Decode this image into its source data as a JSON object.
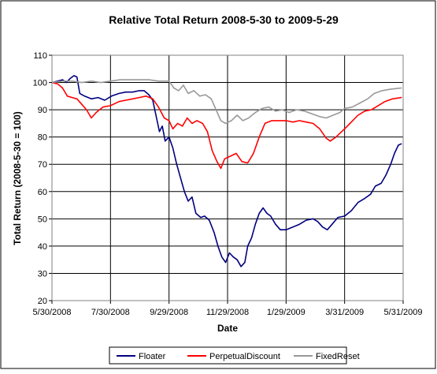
{
  "chart_data": {
    "type": "line",
    "title": "Relative Total Return 2008-5-30 to 2009-5-29",
    "xlabel": "Date",
    "ylabel": "Total Return (2008-5-30 = 100)",
    "ylim": [
      20,
      110
    ],
    "yticks": [
      20,
      30,
      40,
      50,
      60,
      70,
      80,
      90,
      100,
      110
    ],
    "xlim": [
      "2008-05-30",
      "2009-05-31"
    ],
    "xtick_labels": [
      "5/30/2008",
      "7/30/2008",
      "9/29/2008",
      "11/29/2008",
      "1/29/2009",
      "3/31/2009",
      "5/31/2009"
    ],
    "xtick_dates": [
      "2008-05-30",
      "2008-07-30",
      "2008-09-29",
      "2008-11-29",
      "2009-01-29",
      "2009-03-31",
      "2009-05-31"
    ],
    "grid": "horizontal and vertical at ticks",
    "legend_position": "bottom",
    "series": [
      {
        "name": "Floater",
        "color": "#000080",
        "points": [
          [
            "2008-05-30",
            100.0
          ],
          [
            "2008-06-05",
            100.5
          ],
          [
            "2008-06-10",
            101.0
          ],
          [
            "2008-06-14",
            100.0
          ],
          [
            "2008-06-18",
            101.5
          ],
          [
            "2008-06-22",
            102.5
          ],
          [
            "2008-06-25",
            102.0
          ],
          [
            "2008-06-28",
            96.0
          ],
          [
            "2008-07-03",
            95.0
          ],
          [
            "2008-07-10",
            94.0
          ],
          [
            "2008-07-17",
            94.5
          ],
          [
            "2008-07-24",
            93.5
          ],
          [
            "2008-07-31",
            95.0
          ],
          [
            "2008-08-08",
            96.0
          ],
          [
            "2008-08-15",
            96.5
          ],
          [
            "2008-08-22",
            96.5
          ],
          [
            "2008-08-29",
            97.0
          ],
          [
            "2008-09-03",
            97.0
          ],
          [
            "2008-09-08",
            95.5
          ],
          [
            "2008-09-12",
            93.5
          ],
          [
            "2008-09-16",
            87.0
          ],
          [
            "2008-09-19",
            82.0
          ],
          [
            "2008-09-22",
            84.0
          ],
          [
            "2008-09-25",
            78.5
          ],
          [
            "2008-09-29",
            80.0
          ],
          [
            "2008-10-03",
            76.0
          ],
          [
            "2008-10-07",
            70.0
          ],
          [
            "2008-10-11",
            65.0
          ],
          [
            "2008-10-15",
            60.0
          ],
          [
            "2008-10-19",
            56.5
          ],
          [
            "2008-10-23",
            58.0
          ],
          [
            "2008-10-27",
            52.0
          ],
          [
            "2008-11-01",
            50.5
          ],
          [
            "2008-11-05",
            51.0
          ],
          [
            "2008-11-10",
            49.5
          ],
          [
            "2008-11-15",
            45.0
          ],
          [
            "2008-11-19",
            40.0
          ],
          [
            "2008-11-23",
            36.0
          ],
          [
            "2008-11-27",
            34.0
          ],
          [
            "2008-12-01",
            37.5
          ],
          [
            "2008-12-05",
            36.0
          ],
          [
            "2008-12-09",
            35.0
          ],
          [
            "2008-12-13",
            32.5
          ],
          [
            "2008-12-17",
            34.0
          ],
          [
            "2008-12-20",
            40.0
          ],
          [
            "2008-12-24",
            43.0
          ],
          [
            "2008-12-28",
            48.0
          ],
          [
            "2009-01-01",
            52.0
          ],
          [
            "2009-01-05",
            54.0
          ],
          [
            "2009-01-09",
            52.0
          ],
          [
            "2009-01-13",
            51.0
          ],
          [
            "2009-01-18",
            48.0
          ],
          [
            "2009-01-23",
            46.0
          ],
          [
            "2009-01-29",
            46.0
          ],
          [
            "2009-02-05",
            47.0
          ],
          [
            "2009-02-12",
            48.0
          ],
          [
            "2009-02-19",
            49.5
          ],
          [
            "2009-02-26",
            50.0
          ],
          [
            "2009-03-03",
            49.0
          ],
          [
            "2009-03-08",
            47.0
          ],
          [
            "2009-03-13",
            46.0
          ],
          [
            "2009-03-18",
            48.0
          ],
          [
            "2009-03-24",
            50.5
          ],
          [
            "2009-03-31",
            51.0
          ],
          [
            "2009-04-07",
            53.0
          ],
          [
            "2009-04-14",
            56.0
          ],
          [
            "2009-04-21",
            57.5
          ],
          [
            "2009-04-27",
            59.0
          ],
          [
            "2009-05-02",
            62.0
          ],
          [
            "2009-05-08",
            63.0
          ],
          [
            "2009-05-13",
            66.0
          ],
          [
            "2009-05-18",
            70.0
          ],
          [
            "2009-05-22",
            74.0
          ],
          [
            "2009-05-26",
            77.0
          ],
          [
            "2009-05-29",
            77.5
          ]
        ]
      },
      {
        "name": "PerpetualDiscount",
        "color": "#FF0000",
        "points": [
          [
            "2008-05-30",
            100.0
          ],
          [
            "2008-06-05",
            99.5
          ],
          [
            "2008-06-10",
            98.0
          ],
          [
            "2008-06-15",
            95.0
          ],
          [
            "2008-06-20",
            94.5
          ],
          [
            "2008-06-25",
            94.0
          ],
          [
            "2008-06-30",
            92.0
          ],
          [
            "2008-07-05",
            90.0
          ],
          [
            "2008-07-10",
            87.0
          ],
          [
            "2008-07-15",
            89.0
          ],
          [
            "2008-07-22",
            91.0
          ],
          [
            "2008-07-30",
            91.5
          ],
          [
            "2008-08-08",
            93.0
          ],
          [
            "2008-08-15",
            93.5
          ],
          [
            "2008-08-22",
            94.0
          ],
          [
            "2008-08-29",
            94.5
          ],
          [
            "2008-09-05",
            95.0
          ],
          [
            "2008-09-12",
            94.0
          ],
          [
            "2008-09-18",
            91.0
          ],
          [
            "2008-09-24",
            87.0
          ],
          [
            "2008-09-29",
            86.0
          ],
          [
            "2008-10-03",
            83.0
          ],
          [
            "2008-10-08",
            85.0
          ],
          [
            "2008-10-13",
            84.0
          ],
          [
            "2008-10-18",
            87.0
          ],
          [
            "2008-10-23",
            85.0
          ],
          [
            "2008-10-28",
            86.0
          ],
          [
            "2008-11-03",
            85.0
          ],
          [
            "2008-11-08",
            82.0
          ],
          [
            "2008-11-13",
            75.0
          ],
          [
            "2008-11-18",
            71.0
          ],
          [
            "2008-11-22",
            68.5
          ],
          [
            "2008-11-26",
            72.0
          ],
          [
            "2008-12-02",
            73.0
          ],
          [
            "2008-12-08",
            74.0
          ],
          [
            "2008-12-14",
            71.0
          ],
          [
            "2008-12-20",
            70.5
          ],
          [
            "2008-12-26",
            74.0
          ],
          [
            "2009-01-01",
            80.0
          ],
          [
            "2009-01-07",
            85.0
          ],
          [
            "2009-01-14",
            86.0
          ],
          [
            "2009-01-21",
            86.0
          ],
          [
            "2009-01-29",
            86.0
          ],
          [
            "2009-02-05",
            85.5
          ],
          [
            "2009-02-12",
            86.0
          ],
          [
            "2009-02-19",
            85.5
          ],
          [
            "2009-02-26",
            85.0
          ],
          [
            "2009-03-05",
            83.0
          ],
          [
            "2009-03-12",
            79.5
          ],
          [
            "2009-03-16",
            78.5
          ],
          [
            "2009-03-22",
            80.0
          ],
          [
            "2009-03-31",
            83.0
          ],
          [
            "2009-04-07",
            85.5
          ],
          [
            "2009-04-14",
            88.0
          ],
          [
            "2009-04-21",
            89.5
          ],
          [
            "2009-04-28",
            90.0
          ],
          [
            "2009-05-05",
            91.5
          ],
          [
            "2009-05-12",
            93.0
          ],
          [
            "2009-05-20",
            94.0
          ],
          [
            "2009-05-29",
            94.5
          ]
        ]
      },
      {
        "name": "FixedReset",
        "color": "#999999",
        "points": [
          [
            "2008-05-30",
            100.0
          ],
          [
            "2008-06-10",
            100.5
          ],
          [
            "2008-06-20",
            100.5
          ],
          [
            "2008-06-30",
            100.0
          ],
          [
            "2008-07-10",
            100.5
          ],
          [
            "2008-07-20",
            100.0
          ],
          [
            "2008-07-30",
            100.5
          ],
          [
            "2008-08-09",
            101.0
          ],
          [
            "2008-08-19",
            101.0
          ],
          [
            "2008-08-29",
            101.0
          ],
          [
            "2008-09-08",
            101.0
          ],
          [
            "2008-09-18",
            100.5
          ],
          [
            "2008-09-29",
            100.5
          ],
          [
            "2008-10-04",
            98.0
          ],
          [
            "2008-10-09",
            97.0
          ],
          [
            "2008-10-14",
            99.0
          ],
          [
            "2008-10-19",
            96.0
          ],
          [
            "2008-10-25",
            97.0
          ],
          [
            "2008-10-31",
            95.0
          ],
          [
            "2008-11-06",
            95.5
          ],
          [
            "2008-11-12",
            94.0
          ],
          [
            "2008-11-17",
            90.0
          ],
          [
            "2008-11-22",
            86.0
          ],
          [
            "2008-11-27",
            85.0
          ],
          [
            "2008-12-03",
            86.0
          ],
          [
            "2008-12-09",
            88.0
          ],
          [
            "2008-12-15",
            86.0
          ],
          [
            "2008-12-21",
            87.0
          ],
          [
            "2008-12-28",
            89.0
          ],
          [
            "2009-01-04",
            90.5
          ],
          [
            "2009-01-11",
            91.0
          ],
          [
            "2009-01-18",
            89.5
          ],
          [
            "2009-01-25",
            90.0
          ],
          [
            "2009-02-01",
            89.0
          ],
          [
            "2009-02-09",
            90.0
          ],
          [
            "2009-02-17",
            89.5
          ],
          [
            "2009-02-25",
            88.5
          ],
          [
            "2009-03-05",
            87.5
          ],
          [
            "2009-03-12",
            87.0
          ],
          [
            "2009-03-19",
            88.0
          ],
          [
            "2009-03-26",
            89.0
          ],
          [
            "2009-03-31",
            90.5
          ],
          [
            "2009-04-08",
            91.0
          ],
          [
            "2009-04-16",
            92.5
          ],
          [
            "2009-04-24",
            94.0
          ],
          [
            "2009-05-01",
            96.0
          ],
          [
            "2009-05-09",
            97.0
          ],
          [
            "2009-05-17",
            97.5
          ],
          [
            "2009-05-29",
            98.0
          ]
        ]
      }
    ]
  }
}
